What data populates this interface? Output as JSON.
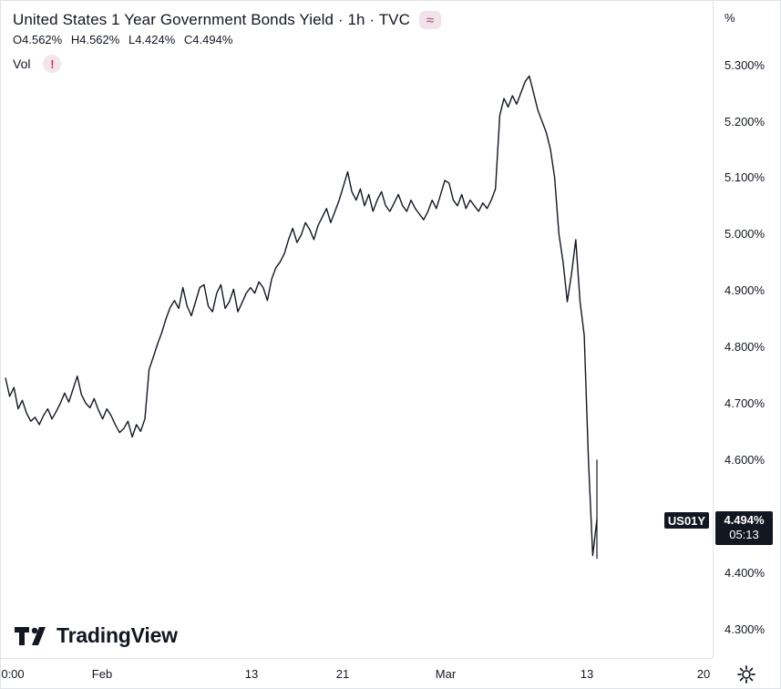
{
  "header": {
    "title": "United States 1 Year Government Bonds Yield · 1h · TVC",
    "ohlc": [
      {
        "k": "O",
        "v": "4.562%"
      },
      {
        "k": "H",
        "v": "4.562%"
      },
      {
        "k": "L",
        "v": "4.424%"
      },
      {
        "k": "C",
        "v": "4.494%"
      }
    ],
    "vol_label": "Vol",
    "alert_glyph": "!",
    "wave_glyph": "≈"
  },
  "price_scale": {
    "unit": "%",
    "ticks": [
      "5.300%",
      "5.200%",
      "5.100%",
      "5.000%",
      "4.900%",
      "4.800%",
      "4.700%",
      "4.600%",
      "4.400%",
      "4.300%"
    ]
  },
  "time_scale": {
    "ticks": [
      "0:00",
      "Feb",
      "13",
      "21",
      "Mar",
      "13",
      "20"
    ]
  },
  "badge": {
    "symbol": "US01Y",
    "price": "4.494%",
    "countdown": "05:13"
  },
  "branding": {
    "name": "TradingView"
  },
  "icons": {
    "settings": "gear-icon",
    "logo": "tradingview-logo-icon"
  },
  "colors": {
    "line": "#131722",
    "badge_bg": "#131722",
    "alert": "#d32f4f",
    "wave": "#b0416d"
  },
  "chart_data": {
    "type": "line",
    "title": "United States 1 Year Government Bonds Yield · 1h · TVC",
    "xlabel": "",
    "ylabel": "",
    "ylim": [
      4.26,
      5.37
    ],
    "yticks": [
      5.3,
      5.2,
      5.1,
      5.0,
      4.9,
      4.8,
      4.7,
      4.6,
      4.4,
      4.3
    ],
    "grid": false,
    "last_value": 4.494,
    "series": [
      {
        "values": [
          4.745,
          4.712,
          4.728,
          4.69,
          4.705,
          4.682,
          4.668,
          4.675,
          4.662,
          4.678,
          4.69,
          4.672,
          4.685,
          4.7,
          4.718,
          4.702,
          4.725,
          4.748,
          4.715,
          4.7,
          4.692,
          4.708,
          4.688,
          4.672,
          4.69,
          4.678,
          4.662,
          4.648,
          4.655,
          4.668,
          4.64,
          4.662,
          4.65,
          4.672,
          4.76,
          4.782,
          4.805,
          4.825,
          4.85,
          4.87,
          4.882,
          4.868,
          4.905,
          4.872,
          4.855,
          4.88,
          4.905,
          4.91,
          4.872,
          4.862,
          4.895,
          4.91,
          4.868,
          4.88,
          4.902,
          4.862,
          4.878,
          4.895,
          4.905,
          4.895,
          4.915,
          4.905,
          4.882,
          4.92,
          4.94,
          4.95,
          4.965,
          4.99,
          5.01,
          4.985,
          4.998,
          5.02,
          5.008,
          4.99,
          5.015,
          5.03,
          5.045,
          5.02,
          5.04,
          5.06,
          5.085,
          5.11,
          5.075,
          5.06,
          5.08,
          5.05,
          5.07,
          5.04,
          5.06,
          5.075,
          5.05,
          5.04,
          5.055,
          5.07,
          5.05,
          5.04,
          5.06,
          5.045,
          5.035,
          5.025,
          5.04,
          5.06,
          5.045,
          5.07,
          5.095,
          5.09,
          5.06,
          5.05,
          5.07,
          5.045,
          5.06,
          5.05,
          5.04,
          5.055,
          5.045,
          5.06,
          5.08,
          5.21,
          5.24,
          5.225,
          5.245,
          5.23,
          5.25,
          5.27,
          5.28,
          5.25,
          5.22,
          5.2,
          5.18,
          5.15,
          5.1,
          5.0,
          4.95,
          4.88,
          4.93,
          4.99,
          4.88,
          4.82,
          4.6,
          4.43,
          4.494
        ]
      }
    ]
  }
}
